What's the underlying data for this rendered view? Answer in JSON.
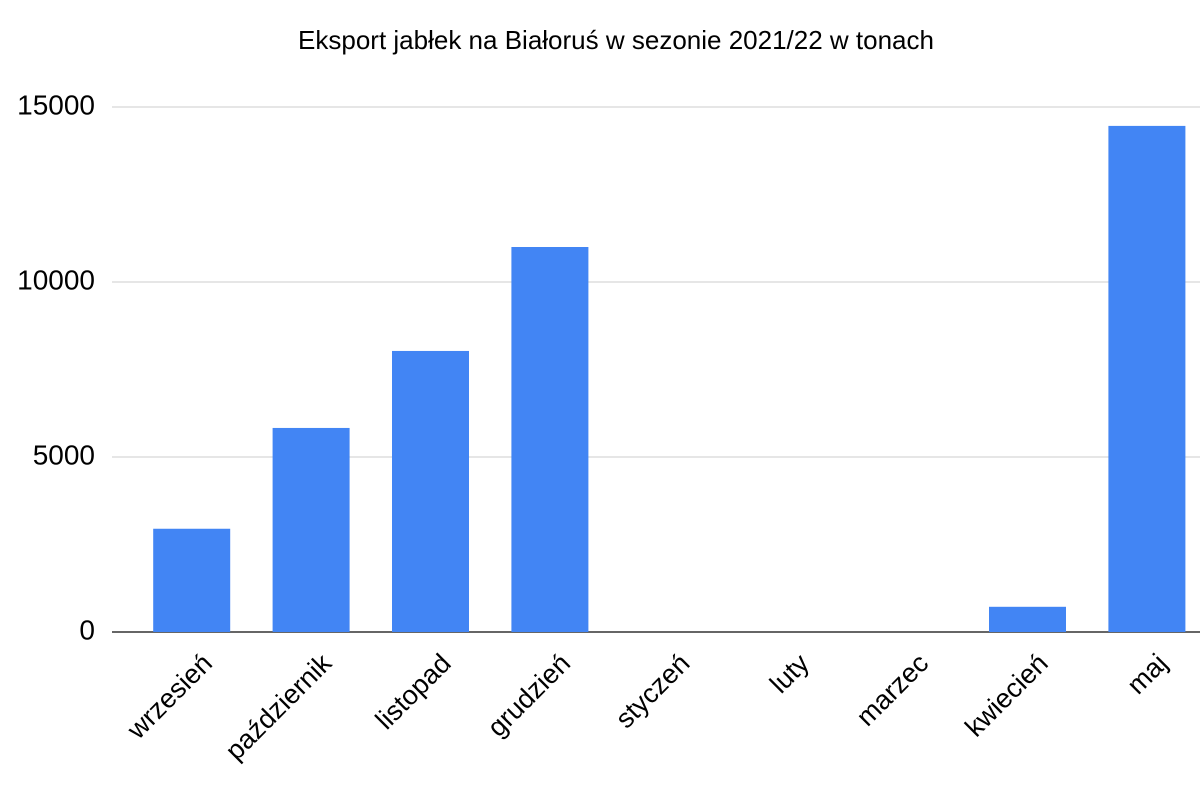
{
  "chart_data": {
    "type": "bar",
    "title": "Eksport jabłek na Białoruś w sezonie 2021/22 w tonach",
    "categories": [
      "wrzesień",
      "październik",
      "listopad",
      "grudzień",
      "styczeń",
      "luty",
      "marzec",
      "kwiecień",
      "maj"
    ],
    "values": [
      2950,
      5830,
      8030,
      11000,
      0,
      0,
      0,
      720,
      14460
    ],
    "color": "#4285f4",
    "ylim": [
      0,
      15000
    ],
    "yticks": [
      0,
      5000,
      10000,
      15000
    ],
    "grid": true
  }
}
